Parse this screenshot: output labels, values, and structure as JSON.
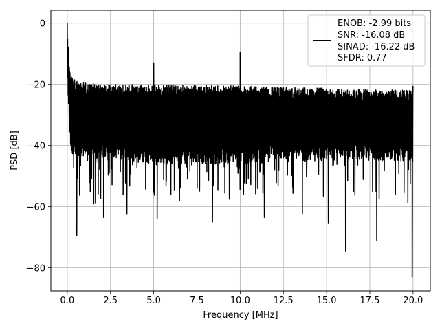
{
  "chart_data": {
    "type": "line",
    "title": "",
    "xlabel": "Frequency [MHz]",
    "ylabel": "PSD [dB]",
    "xlim": [
      -0.95,
      21.0
    ],
    "ylim": [
      -87.5,
      4.2
    ],
    "xticks": [
      0.0,
      2.5,
      5.0,
      7.5,
      10.0,
      12.5,
      15.0,
      17.5,
      20.0
    ],
    "xtick_labels": [
      "0.0",
      "2.5",
      "5.0",
      "7.5",
      "10.0",
      "12.5",
      "15.0",
      "17.5",
      "20.0"
    ],
    "yticks": [
      0,
      -20,
      -40,
      -60,
      -80
    ],
    "ytick_labels": [
      "0",
      "−20",
      "−40",
      "−60",
      "−80"
    ],
    "grid": true,
    "legend_position": "top-right",
    "legend_lines": [
      "ENOB: -2.99 bits",
      "SNR: -16.08 dB",
      "SINAD: -16.22 dB",
      "SFDR: 0.77"
    ],
    "line_color": "#000000",
    "noise_band": {
      "x_start": 0.0,
      "x_end": 20.0,
      "upper_edge": [
        [
          0.0,
          0.0
        ],
        [
          0.1,
          -12
        ],
        [
          0.2,
          -17
        ],
        [
          0.5,
          -19
        ],
        [
          2.5,
          -20
        ],
        [
          10.0,
          -20.5
        ],
        [
          20.0,
          -22
        ]
      ],
      "lower_edge": [
        [
          0.0,
          -20
        ],
        [
          0.2,
          -42
        ],
        [
          0.5,
          -44
        ],
        [
          5.0,
          -46
        ],
        [
          10.0,
          -46
        ],
        [
          15.0,
          -45
        ],
        [
          20.0,
          -45
        ]
      ],
      "typical_min_dB": -60,
      "points": 2000
    },
    "peaks": [
      {
        "x": 0.0,
        "y": 0.0
      },
      {
        "x": 5.0,
        "y": -13.0
      },
      {
        "x": 10.0,
        "y": -9.5
      },
      {
        "x": 20.0,
        "y": -20.5
      }
    ],
    "dips": [
      {
        "x": 0.55,
        "y": -69.5
      },
      {
        "x": 2.1,
        "y": -63.5
      },
      {
        "x": 3.45,
        "y": -62.5
      },
      {
        "x": 5.2,
        "y": -64.0
      },
      {
        "x": 8.4,
        "y": -65.0
      },
      {
        "x": 11.4,
        "y": -63.5
      },
      {
        "x": 13.6,
        "y": -62.5
      },
      {
        "x": 15.1,
        "y": -65.5
      },
      {
        "x": 16.1,
        "y": -74.5
      },
      {
        "x": 17.9,
        "y": -71.0
      },
      {
        "x": 19.95,
        "y": -83.0
      }
    ]
  }
}
